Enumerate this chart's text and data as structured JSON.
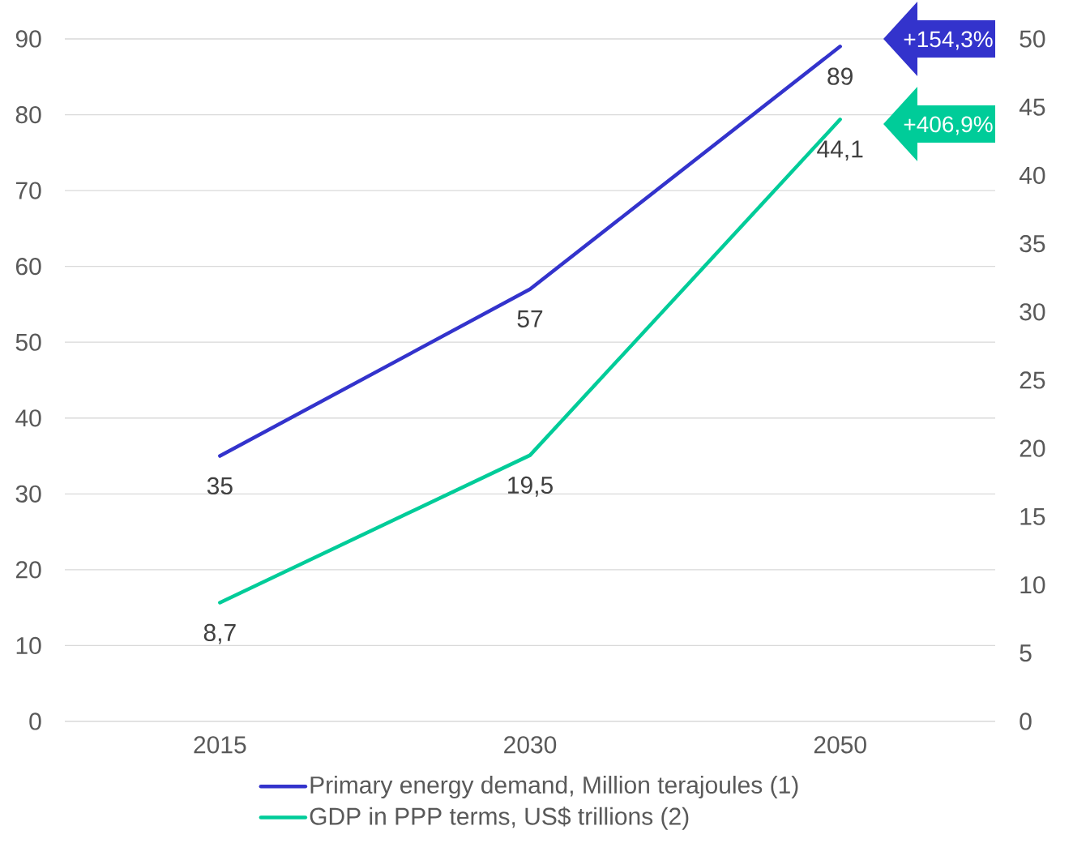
{
  "chart_data": {
    "type": "line",
    "categories": [
      "2015",
      "2030",
      "2050"
    ],
    "series": [
      {
        "name": "Primary energy demand, Million terajoules (1)",
        "color": "#3333cc",
        "values": [
          35,
          57,
          89
        ],
        "value_labels": [
          "35",
          "57",
          "89"
        ]
      },
      {
        "name": "GDP in PPP terms, US$ trillions (2)",
        "color": "#00cc99",
        "values": [
          8.7,
          19.5,
          44.1
        ],
        "value_labels": [
          "8,7",
          "19,5",
          "44,1"
        ],
        "axis": "y2"
      }
    ],
    "ylim": [
      0,
      90
    ],
    "yticks": [
      0,
      10,
      20,
      30,
      40,
      50,
      60,
      70,
      80,
      90
    ],
    "y2lim": [
      0,
      50
    ],
    "y2ticks": [
      0,
      5,
      10,
      15,
      20,
      25,
      30,
      35,
      40,
      45,
      50
    ],
    "grid": "y",
    "legend": "bottom",
    "marker": "none",
    "line_style": "solid",
    "annotations": [
      "+154,3%",
      "+406,9%"
    ]
  }
}
